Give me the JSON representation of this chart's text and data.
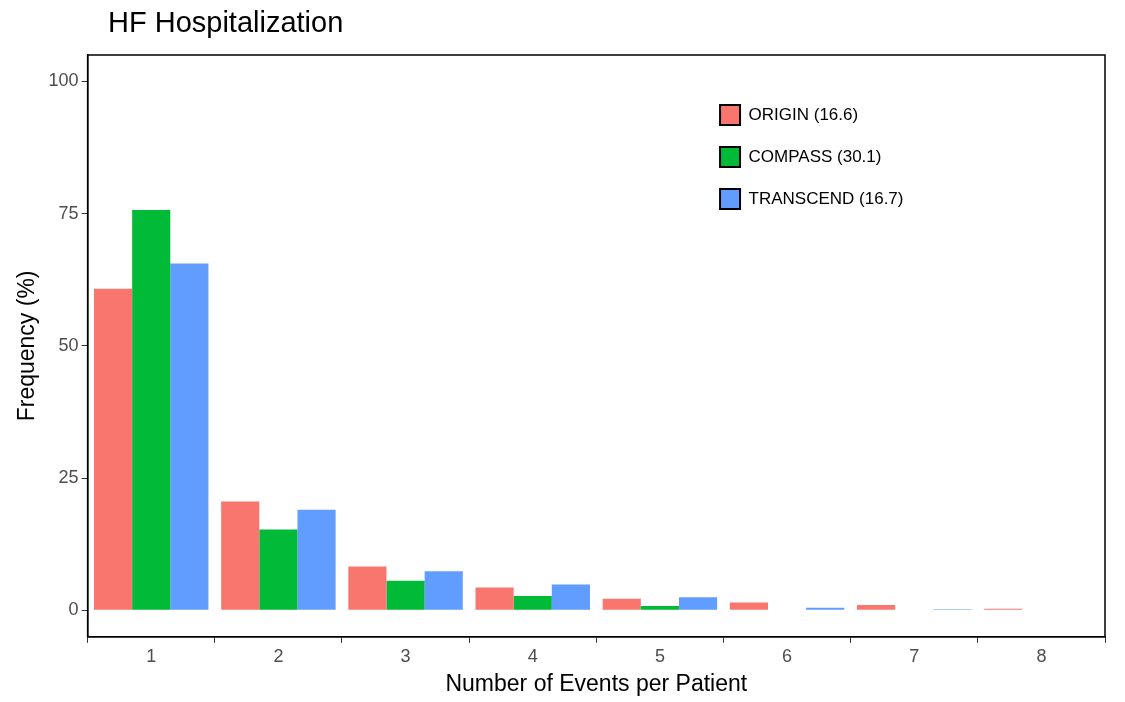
{
  "chart_data": {
    "type": "bar",
    "title": "HF Hospitalization",
    "xlabel": "Number of Events per Patient",
    "ylabel": "Frequency (%)",
    "categories": [
      "1",
      "2",
      "3",
      "4",
      "5",
      "6",
      "7",
      "8"
    ],
    "series": [
      {
        "name": "ORIGIN (16.6)",
        "color": "#f8766d",
        "values": [
          60.8,
          20.6,
          8.3,
          4.3,
          2.2,
          1.5,
          1.0,
          0.3
        ]
      },
      {
        "name": "COMPASS (30.1)",
        "color": "#00ba38",
        "values": [
          75.7,
          15.3,
          5.6,
          2.7,
          0.8,
          null,
          null,
          null
        ]
      },
      {
        "name": "TRANSCEND (16.7)",
        "color": "#619cff",
        "values": [
          65.6,
          19.0,
          7.4,
          4.9,
          2.5,
          0.5,
          0.2,
          null
        ]
      }
    ],
    "ylim": [
      -5,
      105
    ],
    "yticks": [
      0,
      25,
      50,
      75,
      100
    ],
    "grid": false,
    "legend": "top right"
  }
}
